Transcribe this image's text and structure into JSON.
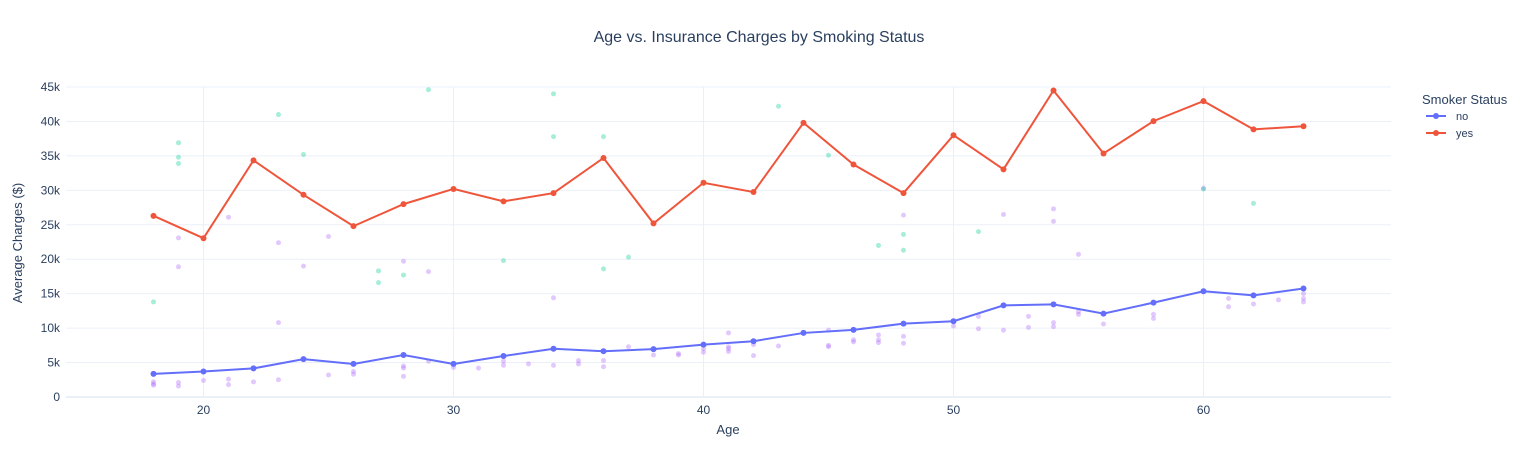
{
  "chart_data": {
    "type": "line",
    "title": "Age vs. Insurance Charges by Smoking Status",
    "xlabel": "Age",
    "ylabel": "Average Charges ($)",
    "xlim": [
      14.5,
      67.5
    ],
    "ylim": [
      0,
      45000
    ],
    "x_ticks": [
      20,
      30,
      40,
      50,
      60
    ],
    "y_ticks": [
      0,
      5000,
      10000,
      15000,
      20000,
      25000,
      30000,
      35000,
      40000,
      45000
    ],
    "y_tick_labels": [
      "0",
      "5k",
      "10k",
      "15k",
      "20k",
      "25k",
      "30k",
      "35k",
      "40k",
      "45k"
    ],
    "grid": true,
    "legend": {
      "title": "Smoker Status",
      "placement": "top-right"
    },
    "series": [
      {
        "name": "no",
        "color": "#636efa",
        "x": [
          18,
          20,
          22,
          24,
          26,
          28,
          30,
          32,
          34,
          36,
          38,
          40,
          42,
          44,
          46,
          48,
          50,
          52,
          54,
          56,
          58,
          60,
          62,
          64
        ],
        "y": [
          3350,
          3700,
          4150,
          5500,
          4800,
          6100,
          4800,
          5950,
          7000,
          6650,
          6950,
          7600,
          8100,
          9300,
          9750,
          10650,
          11000,
          13300,
          13450,
          12100,
          13700,
          15350,
          14750,
          15750
        ]
      },
      {
        "name": "yes",
        "color": "#ef553b",
        "x": [
          18,
          20,
          22,
          24,
          26,
          28,
          30,
          32,
          34,
          36,
          38,
          40,
          42,
          44,
          46,
          48,
          50,
          52,
          54,
          56,
          58,
          60,
          62,
          64
        ],
        "y": [
          26300,
          23050,
          34350,
          29350,
          24800,
          28000,
          30200,
          28400,
          29600,
          34700,
          25200,
          31100,
          29750,
          39800,
          33750,
          29600,
          38000,
          33050,
          44500,
          35350,
          40050,
          42950,
          38850,
          39300
        ]
      }
    ],
    "scatter_background": [
      {
        "name": "no",
        "color": "#ab63fa",
        "points": [
          [
            18,
            1700
          ],
          [
            18,
            1900
          ],
          [
            18,
            2200
          ],
          [
            19,
            1600
          ],
          [
            19,
            2100
          ],
          [
            19,
            18900
          ],
          [
            19,
            23100
          ],
          [
            20,
            2400
          ],
          [
            21,
            1800
          ],
          [
            21,
            2600
          ],
          [
            21,
            26100
          ],
          [
            22,
            2200
          ],
          [
            23,
            2500
          ],
          [
            23,
            10800
          ],
          [
            23,
            22400
          ],
          [
            24,
            19000
          ],
          [
            25,
            3200
          ],
          [
            25,
            23300
          ],
          [
            26,
            3300
          ],
          [
            26,
            3700
          ],
          [
            28,
            3000
          ],
          [
            28,
            4200
          ],
          [
            28,
            4500
          ],
          [
            28,
            19700
          ],
          [
            29,
            5200
          ],
          [
            29,
            18200
          ],
          [
            30,
            4300
          ],
          [
            31,
            4200
          ],
          [
            32,
            4600
          ],
          [
            32,
            5200
          ],
          [
            33,
            4800
          ],
          [
            34,
            4600
          ],
          [
            34,
            14400
          ],
          [
            35,
            4800
          ],
          [
            35,
            5300
          ],
          [
            36,
            4400
          ],
          [
            36,
            5300
          ],
          [
            37,
            7300
          ],
          [
            38,
            6100
          ],
          [
            39,
            6100
          ],
          [
            39,
            6300
          ],
          [
            40,
            6500
          ],
          [
            40,
            7000
          ],
          [
            41,
            6600
          ],
          [
            41,
            7000
          ],
          [
            41,
            7300
          ],
          [
            41,
            9300
          ],
          [
            42,
            6000
          ],
          [
            42,
            7600
          ],
          [
            43,
            7400
          ],
          [
            45,
            7300
          ],
          [
            45,
            7500
          ],
          [
            45,
            9700
          ],
          [
            46,
            8000
          ],
          [
            46,
            8300
          ],
          [
            47,
            7900
          ],
          [
            47,
            8300
          ],
          [
            47,
            9000
          ],
          [
            48,
            7800
          ],
          [
            48,
            8800
          ],
          [
            48,
            26400
          ],
          [
            50,
            10300
          ],
          [
            51,
            9900
          ],
          [
            51,
            11700
          ],
          [
            52,
            9700
          ],
          [
            52,
            26500
          ],
          [
            53,
            10100
          ],
          [
            53,
            11700
          ],
          [
            54,
            10200
          ],
          [
            54,
            10800
          ],
          [
            54,
            25500
          ],
          [
            54,
            27300
          ],
          [
            55,
            12000
          ],
          [
            55,
            12400
          ],
          [
            55,
            20700
          ],
          [
            56,
            10600
          ],
          [
            58,
            11400
          ],
          [
            58,
            12000
          ],
          [
            60,
            30300
          ],
          [
            61,
            13100
          ],
          [
            61,
            14300
          ],
          [
            62,
            13500
          ],
          [
            63,
            14100
          ],
          [
            64,
            13800
          ],
          [
            64,
            14300
          ],
          [
            64,
            15000
          ]
        ]
      },
      {
        "name": "yes",
        "color": "#00cc96",
        "points": [
          [
            18,
            13800
          ],
          [
            19,
            33900
          ],
          [
            19,
            34800
          ],
          [
            19,
            36900
          ],
          [
            23,
            41000
          ],
          [
            24,
            35200
          ],
          [
            27,
            18300
          ],
          [
            27,
            16600
          ],
          [
            28,
            17700
          ],
          [
            29,
            44600
          ],
          [
            32,
            19800
          ],
          [
            34,
            37800
          ],
          [
            34,
            44000
          ],
          [
            36,
            18600
          ],
          [
            36,
            37800
          ],
          [
            37,
            20300
          ],
          [
            43,
            42200
          ],
          [
            45,
            35100
          ],
          [
            47,
            22000
          ],
          [
            48,
            21300
          ],
          [
            48,
            23600
          ],
          [
            51,
            24000
          ],
          [
            60,
            30200
          ],
          [
            62,
            28100
          ]
        ]
      }
    ]
  }
}
